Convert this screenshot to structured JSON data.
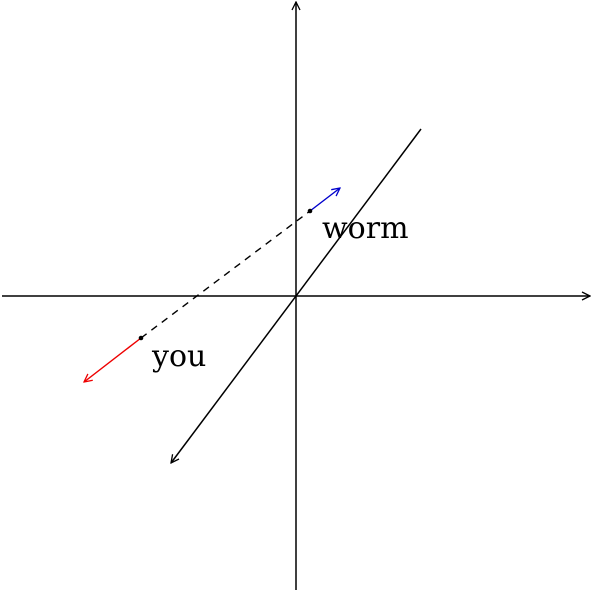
{
  "labels": {
    "worm": "worm",
    "you": "you"
  },
  "colors": {
    "axis": "#000000",
    "line": "#000000",
    "worm_arrow": "#0000cc",
    "you_arrow": "#ee0000",
    "background": "#ffffff"
  }
}
